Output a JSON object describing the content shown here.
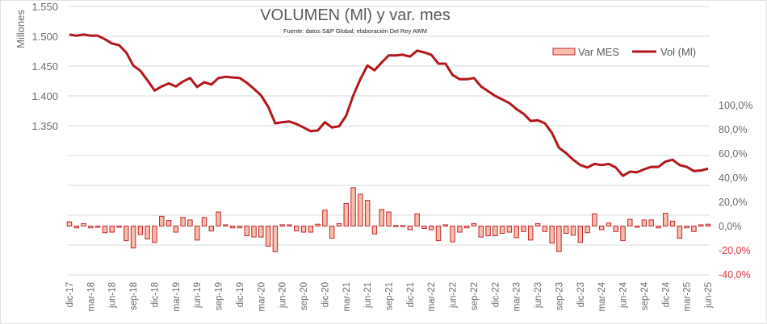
{
  "chart_data": {
    "type": "bar+line",
    "title": "VOLUMEN (Ml) y var. mes",
    "subtitle": "Fuente: datos S&P Global; elaboración Del Rey AWM",
    "ylabel": "Millones",
    "xlabel": "",
    "y_left_ticks": [
      "1.550",
      "1.500",
      "1.450",
      "1.400",
      "1.350"
    ],
    "y_left_tick_values": [
      1.55,
      1.5,
      1.45,
      1.4,
      1.35
    ],
    "y_left_range": [
      1.1,
      1.55
    ],
    "y_right_ticks": [
      "100,0%",
      "80,0%",
      "60,0%",
      "40,0%",
      "20,0%",
      "0,0%",
      "-20,0%",
      "-40,0%"
    ],
    "y_right_tick_values": [
      100,
      80,
      60,
      40,
      20,
      0,
      -20,
      -40
    ],
    "y_right_range": [
      -40,
      180
    ],
    "grid": true,
    "legend": {
      "position": "top-right",
      "entries": [
        "Var MES",
        "Vol (Ml)"
      ]
    },
    "x_tick_labels": [
      "dic-17",
      "mar-18",
      "jun-18",
      "sep-18",
      "dic-18",
      "mar-19",
      "jun-19",
      "sep-19",
      "dic-19",
      "mar-20",
      "jun-20",
      "sep-20",
      "dic-20",
      "mar-21",
      "jun-21",
      "sep-21",
      "dic-21",
      "mar-22",
      "jun-22",
      "sep-22",
      "dic-22",
      "mar-23",
      "jun-23",
      "sep-23",
      "dic-23",
      "mar-24",
      "jun-24",
      "sep-24",
      "dic-24",
      "mar-25",
      "jun-25"
    ],
    "series": [
      {
        "name": "Var MES",
        "type": "bar",
        "axis": "right",
        "unit": "%",
        "values": [
          3.5,
          -1.5,
          2,
          -1.5,
          -0.5,
          -5.5,
          -5,
          -1,
          -12,
          -18,
          -7,
          -10.5,
          -13.5,
          8,
          4.5,
          -5,
          7,
          5,
          -11.5,
          7,
          -4,
          11.5,
          1,
          -1.5,
          -1.5,
          -8,
          -9,
          -9,
          -16.5,
          -21,
          1,
          1,
          -4,
          -5,
          -5,
          1.5,
          13,
          -10,
          2,
          18.5,
          31.5,
          26,
          21,
          -6.5,
          13.5,
          11.5,
          0.5,
          0.5,
          -3,
          10,
          -2,
          -3,
          -12,
          1,
          -13,
          -5,
          -1.5,
          2,
          -9,
          -8,
          -8,
          -6,
          -5,
          -9.5,
          -4.5,
          -11.5,
          2,
          -4.5,
          -14,
          -21,
          -6,
          -7.5,
          -13.5,
          -5.5,
          10,
          -3,
          2.5,
          -4.5,
          -12,
          5.5,
          -1,
          5,
          5,
          -1.5,
          10.5,
          4,
          -10,
          -1.5,
          -4.5,
          1,
          1.5
        ]
      },
      {
        "name": "Vol (Ml)",
        "type": "line",
        "axis": "left",
        "unit": "millones",
        "values": [
          1.503,
          1.501,
          1.503,
          1.501,
          1.501,
          1.495,
          1.488,
          1.485,
          1.473,
          1.451,
          1.442,
          1.426,
          1.409,
          1.416,
          1.421,
          1.416,
          1.424,
          1.43,
          1.415,
          1.423,
          1.419,
          1.43,
          1.432,
          1.431,
          1.43,
          1.422,
          1.412,
          1.401,
          1.382,
          1.354,
          1.356,
          1.357,
          1.353,
          1.347,
          1.341,
          1.342,
          1.356,
          1.347,
          1.349,
          1.367,
          1.401,
          1.428,
          1.451,
          1.443,
          1.456,
          1.468,
          1.468,
          1.469,
          1.466,
          1.476,
          1.473,
          1.469,
          1.454,
          1.454,
          1.435,
          1.428,
          1.428,
          1.43,
          1.416,
          1.408,
          1.4,
          1.394,
          1.388,
          1.378,
          1.37,
          1.358,
          1.359,
          1.354,
          1.338,
          1.313,
          1.304,
          1.293,
          1.284,
          1.28,
          1.286,
          1.284,
          1.286,
          1.28,
          1.266,
          1.273,
          1.272,
          1.277,
          1.281,
          1.281,
          1.29,
          1.293,
          1.284,
          1.281,
          1.274,
          1.275,
          1.278
        ]
      }
    ],
    "colors": {
      "line": "#b3161b",
      "bar_fill": "#f8bdab",
      "bar_stroke": "#c0262d",
      "negative_tick": "#d9363e"
    }
  }
}
